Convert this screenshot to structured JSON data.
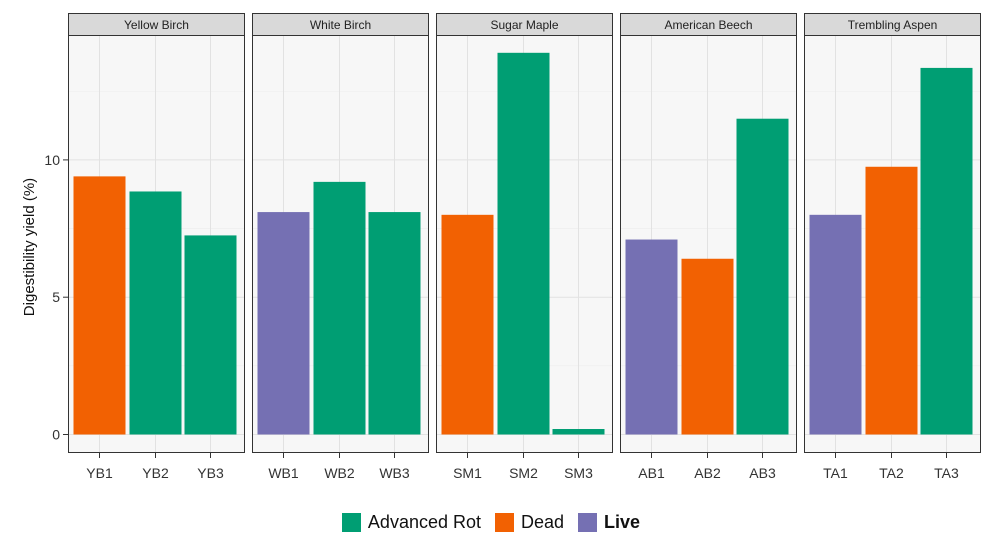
{
  "chart_data": {
    "type": "bar",
    "ylabel": "Digestibility yield (%)",
    "ylim": [
      0,
      15
    ],
    "y_ticks": [
      0,
      5,
      10
    ],
    "grid": true,
    "legend_position": "bottom",
    "colors": {
      "Advanced Rot": "#009e73",
      "Dead": "#f26102",
      "Live": "#7570b3"
    },
    "legend": [
      "Advanced Rot",
      "Dead",
      "Live"
    ],
    "panels": [
      {
        "title": "Yellow Birch",
        "categories": [
          "YB1",
          "YB2",
          "YB3"
        ],
        "values": [
          9.4,
          8.85,
          7.25
        ],
        "groups": [
          "Dead",
          "Advanced Rot",
          "Advanced Rot"
        ]
      },
      {
        "title": "White Birch",
        "categories": [
          "WB1",
          "WB2",
          "WB3"
        ],
        "values": [
          8.1,
          9.2,
          8.1
        ],
        "groups": [
          "Live",
          "Advanced Rot",
          "Advanced Rot"
        ]
      },
      {
        "title": "Sugar Maple",
        "categories": [
          "SM1",
          "SM2",
          "SM3"
        ],
        "values": [
          8.0,
          13.9,
          0.2
        ],
        "groups": [
          "Dead",
          "Advanced Rot",
          "Advanced Rot"
        ]
      },
      {
        "title": "American  Beech",
        "categories": [
          "AB1",
          "AB2",
          "AB3"
        ],
        "values": [
          7.1,
          6.4,
          11.5
        ],
        "groups": [
          "Live",
          "Dead",
          "Advanced Rot"
        ]
      },
      {
        "title": "Trembling Aspen",
        "categories": [
          "TA1",
          "TA2",
          "TA3"
        ],
        "values": [
          8.0,
          9.75,
          13.35
        ],
        "groups": [
          "Live",
          "Dead",
          "Advanced Rot"
        ]
      }
    ]
  }
}
